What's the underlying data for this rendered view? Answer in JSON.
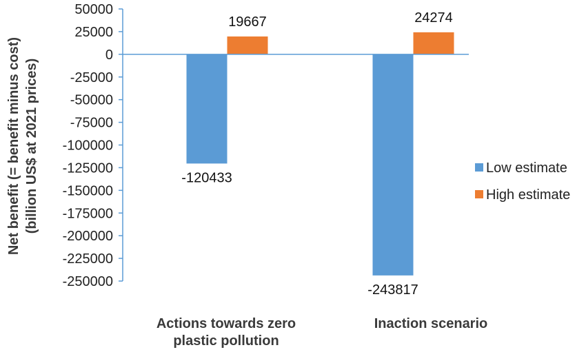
{
  "chart_data": {
    "type": "bar",
    "categories": [
      [
        "Actions towards zero",
        "plastic pollution"
      ],
      [
        "Inaction scenario"
      ]
    ],
    "series": [
      {
        "name": "Low estimate",
        "color": "#5b9bd5",
        "values": [
          -120433,
          -243817
        ]
      },
      {
        "name": "High estimate",
        "color": "#ed7d31",
        "values": [
          19667,
          24274
        ]
      }
    ],
    "ylabel": [
      "Net benefit (= benefit minus cost)",
      "(billion US$ at 2021 prices)"
    ],
    "ylim": [
      -250000,
      50000
    ],
    "yticks": [
      "50000",
      "25000",
      "0",
      "-25000",
      "-50000",
      "-75000",
      "-100000",
      "-125000",
      "-150000",
      "-175000",
      "-200000",
      "-225000",
      "-250000"
    ],
    "data_labels": [
      [
        "-120433",
        "-243817"
      ],
      [
        "19667",
        "24274"
      ]
    ],
    "grid": false,
    "legend_position": "right"
  }
}
